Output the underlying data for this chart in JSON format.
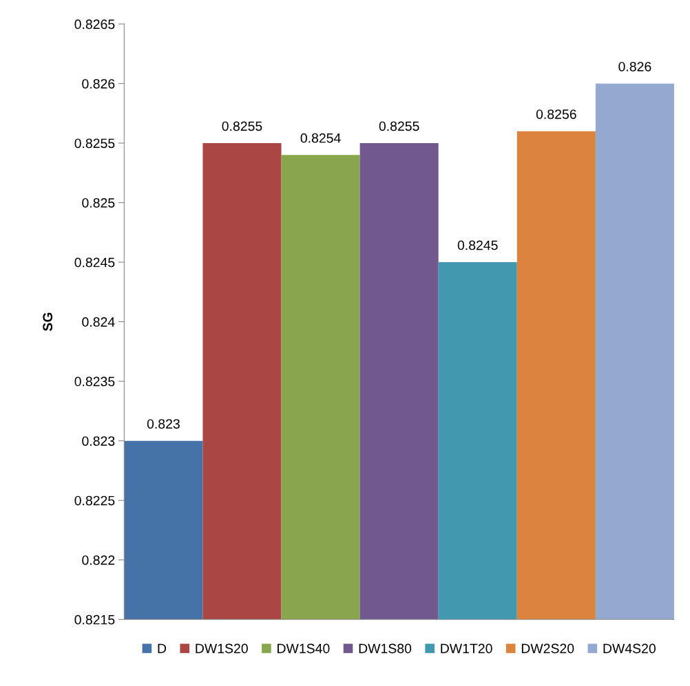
{
  "chart_data": {
    "type": "bar",
    "ylabel": "SG",
    "categories": [
      null
    ],
    "series": [
      {
        "name": "D",
        "color": "#4572a7",
        "values": [
          0.823
        ]
      },
      {
        "name": "DW1S20",
        "color": "#aa4643",
        "values": [
          0.8255
        ]
      },
      {
        "name": "DW1S40",
        "color": "#89a54e",
        "values": [
          0.8254
        ]
      },
      {
        "name": "DW1S80",
        "color": "#71588f",
        "values": [
          0.8255
        ]
      },
      {
        "name": "DW1T20",
        "color": "#4198af",
        "values": [
          0.8245
        ]
      },
      {
        "name": "DW2S20",
        "color": "#db843d",
        "values": [
          0.8256
        ]
      },
      {
        "name": "DW4S20",
        "color": "#93a9cf",
        "values": [
          0.826
        ]
      }
    ],
    "ylim": [
      0.8215,
      0.8265
    ],
    "yticks": [
      0.8215,
      0.822,
      0.8225,
      0.823,
      0.8235,
      0.824,
      0.8245,
      0.825,
      0.8255,
      0.826,
      0.8265
    ],
    "data_labels": true,
    "legend": "bottom",
    "grid": false
  }
}
